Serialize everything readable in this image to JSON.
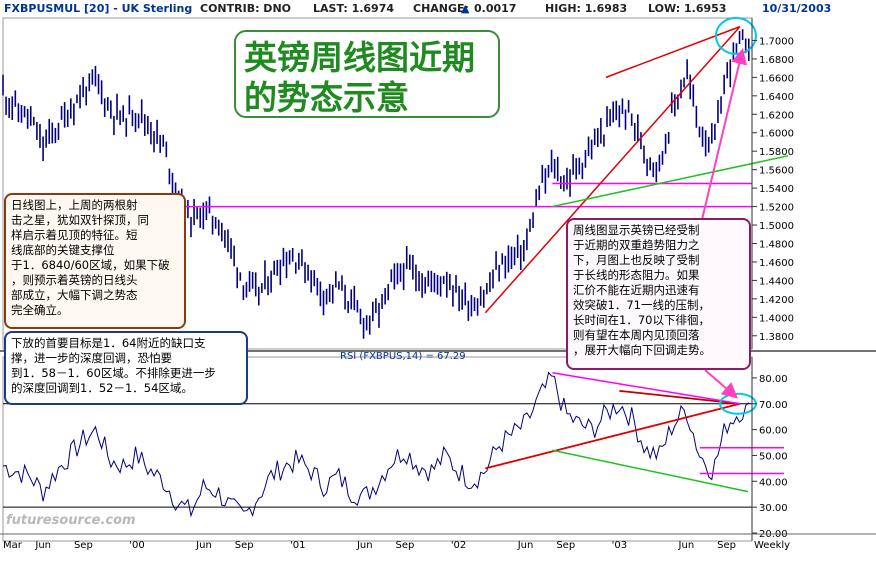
{
  "header": {
    "symbol": "FXBPUSMUL [20] - UK Sterling",
    "contrib": "CONTRIB: DNO",
    "last": "LAST: 1.6974",
    "change_label": "CHANGE:",
    "change_value": "0.0017",
    "high": "HIGH: 1.6983",
    "low": "LOW: 1.6953",
    "date": "10/31/2003"
  },
  "title_box": {
    "line1": "英镑周线图近期",
    "line2": "的势态示意"
  },
  "note_left": {
    "lines": [
      "日线图上，上周的两根射",
      "击之星，犹如双针探顶，同",
      "样启示着见顶的特征。短",
      "线底部的关键支撑位",
      "于1．6840/60区域，如果下破",
      "，则预示着英镑的日线头",
      "部成立，大幅下调之势态",
      "完全确立。"
    ]
  },
  "note_bottom": {
    "lines": [
      "下放的首要目标是1．64附近的缺口支",
      "撑，进一步的深度回调，恐怕要",
      "到1．58－1．60区域。不排除更进一步",
      "的深度回调到1．52－1．54区域。"
    ]
  },
  "note_right": {
    "lines": [
      "周线图显示英镑已经受制",
      "于近期的双重趋势阻力之",
      "下，月图上也反映了受制",
      "于长线的形态阻力。如果",
      "汇价不能在近期内迅速有",
      "效突破1．71一线的压制，",
      "长时间在1．70以下徘徊，",
      "则有望在本周内见顶回落",
      "，展开大幅向下回调走势。"
    ]
  },
  "watermark": "futuresource.com",
  "colors": {
    "price": "#000080",
    "rsi": "#000080",
    "trend_red": "#e00000",
    "support_magenta": "#ff00ff",
    "trend_green": "#20c020",
    "rsi_dark_red": "#c00000",
    "highlight_cyan": "#00c8e8",
    "arrow_pink": "#ff40c0"
  },
  "chart_data": [
    {
      "type": "line",
      "title": "FXBPUSMUL [20] - UK Sterling",
      "style": "OHLC bars, weekly",
      "y_axis_side": "right",
      "ylim": [
        1.37,
        1.72
      ],
      "y_ticks": [
        "1.7000",
        "1.6800",
        "1.6600",
        "1.6400",
        "1.6200",
        "1.6000",
        "1.5800",
        "1.5600",
        "1.5400",
        "1.5200",
        "1.5000",
        "1.4800",
        "1.4600",
        "1.4400",
        "1.4200",
        "1.4000",
        "1.3800"
      ],
      "x_ticks": [
        "Mar",
        "Jun",
        "Sep",
        "'00",
        "Jun",
        "Sep",
        "'01",
        "Jun",
        "Sep",
        "'02",
        "Jun",
        "Sep",
        "'03",
        "Jun",
        "Sep",
        "Weekly"
      ],
      "x_range": [
        "1999-03",
        "2003-10"
      ],
      "series": [
        {
          "x": [
            "1999-03",
            "1999-04",
            "1999-05",
            "1999-06",
            "1999-07",
            "1999-08",
            "1999-09",
            "1999-10",
            "1999-11",
            "1999-12",
            "2000-01",
            "2000-02",
            "2000-03",
            "2000-04",
            "2000-05",
            "2000-06",
            "2000-07",
            "2000-08",
            "2000-09",
            "2000-10",
            "2000-11",
            "2000-12",
            "2001-01",
            "2001-02",
            "2001-03",
            "2001-04",
            "2001-05",
            "2001-06",
            "2001-07",
            "2001-08",
            "2001-09",
            "2001-10",
            "2001-11",
            "2001-12",
            "2002-01",
            "2002-02",
            "2002-03",
            "2002-04",
            "2002-05",
            "2002-06",
            "2002-07",
            "2002-08",
            "2002-09",
            "2002-10",
            "2002-11",
            "2002-12",
            "2003-01",
            "2003-02",
            "2003-03",
            "2003-04",
            "2003-05",
            "2003-06",
            "2003-07",
            "2003-08",
            "2003-09",
            "2003-10"
          ],
          "values": [
            1.645,
            1.625,
            1.615,
            1.585,
            1.605,
            1.625,
            1.645,
            1.655,
            1.625,
            1.615,
            1.625,
            1.605,
            1.585,
            1.535,
            1.505,
            1.515,
            1.505,
            1.475,
            1.435,
            1.425,
            1.445,
            1.465,
            1.465,
            1.445,
            1.425,
            1.435,
            1.415,
            1.395,
            1.405,
            1.435,
            1.455,
            1.445,
            1.435,
            1.445,
            1.425,
            1.415,
            1.425,
            1.455,
            1.465,
            1.475,
            1.535,
            1.565,
            1.545,
            1.565,
            1.585,
            1.605,
            1.625,
            1.615,
            1.575,
            1.565,
            1.625,
            1.665,
            1.605,
            1.585,
            1.665,
            1.697
          ]
        }
      ],
      "annotations": {
        "support_lines": [
          1.52,
          1.545
        ],
        "channel_top_start": {
          "x": "2002-12",
          "y": 1.66
        },
        "channel_top_end": {
          "x": "2003-10",
          "y": 1.715
        },
        "channel_low_start": {
          "x": "2002-03",
          "y": 1.405
        },
        "green_trend_start": {
          "x": "2002-08",
          "y": 1.52
        },
        "green_trend_end": {
          "x": "2003-10",
          "y": 1.575
        }
      }
    },
    {
      "type": "line",
      "title": "RSI (FXBPUS,14) = 67.29",
      "ylim": [
        20,
        85
      ],
      "y_ticks": [
        "80.00",
        "70.00",
        "60.00",
        "50.00",
        "40.00",
        "30.00",
        "20.00"
      ],
      "reference_lines": [
        70,
        30
      ],
      "series": [
        {
          "x": [
            "1999-03",
            "1999-04",
            "1999-05",
            "1999-06",
            "1999-07",
            "1999-08",
            "1999-09",
            "1999-10",
            "1999-11",
            "1999-12",
            "2000-01",
            "2000-02",
            "2000-03",
            "2000-04",
            "2000-05",
            "2000-06",
            "2000-07",
            "2000-08",
            "2000-09",
            "2000-10",
            "2000-11",
            "2000-12",
            "2001-01",
            "2001-02",
            "2001-03",
            "2001-04",
            "2001-05",
            "2001-06",
            "2001-07",
            "2001-08",
            "2001-09",
            "2001-10",
            "2001-11",
            "2001-12",
            "2002-01",
            "2002-02",
            "2002-03",
            "2002-04",
            "2002-05",
            "2002-06",
            "2002-07",
            "2002-08",
            "2002-09",
            "2002-10",
            "2002-11",
            "2002-12",
            "2003-01",
            "2003-02",
            "2003-03",
            "2003-04",
            "2003-05",
            "2003-06",
            "2003-07",
            "2003-08",
            "2003-09",
            "2003-10"
          ],
          "values": [
            46,
            44,
            42,
            36,
            44,
            50,
            56,
            60,
            48,
            46,
            50,
            44,
            40,
            32,
            28,
            38,
            36,
            30,
            26,
            34,
            42,
            46,
            48,
            44,
            38,
            42,
            36,
            34,
            40,
            48,
            52,
            46,
            44,
            50,
            44,
            40,
            44,
            54,
            58,
            62,
            72,
            80,
            66,
            62,
            60,
            66,
            70,
            64,
            52,
            50,
            62,
            68,
            50,
            44,
            62,
            67.29
          ]
        }
      ],
      "annotations": {
        "red_trend_low": {
          "x": "2002-03",
          "y": 45
        },
        "red_trend_high": {
          "x": "2003-10",
          "y": 70
        },
        "red_resistance_start": {
          "x": "2003-01",
          "y": 75
        },
        "green_trend_start": {
          "x": "2002-08",
          "y": 52
        },
        "green_trend_end": {
          "x": "2003-10",
          "y": 36
        },
        "support_levels": [
          53,
          43
        ],
        "magenta_trend_start": {
          "x": "2002-08",
          "y": 82
        },
        "magenta_trend_end": {
          "x": "2003-10",
          "y": 70
        }
      },
      "highlight": {
        "x": "2003-10",
        "y": 70
      }
    }
  ]
}
